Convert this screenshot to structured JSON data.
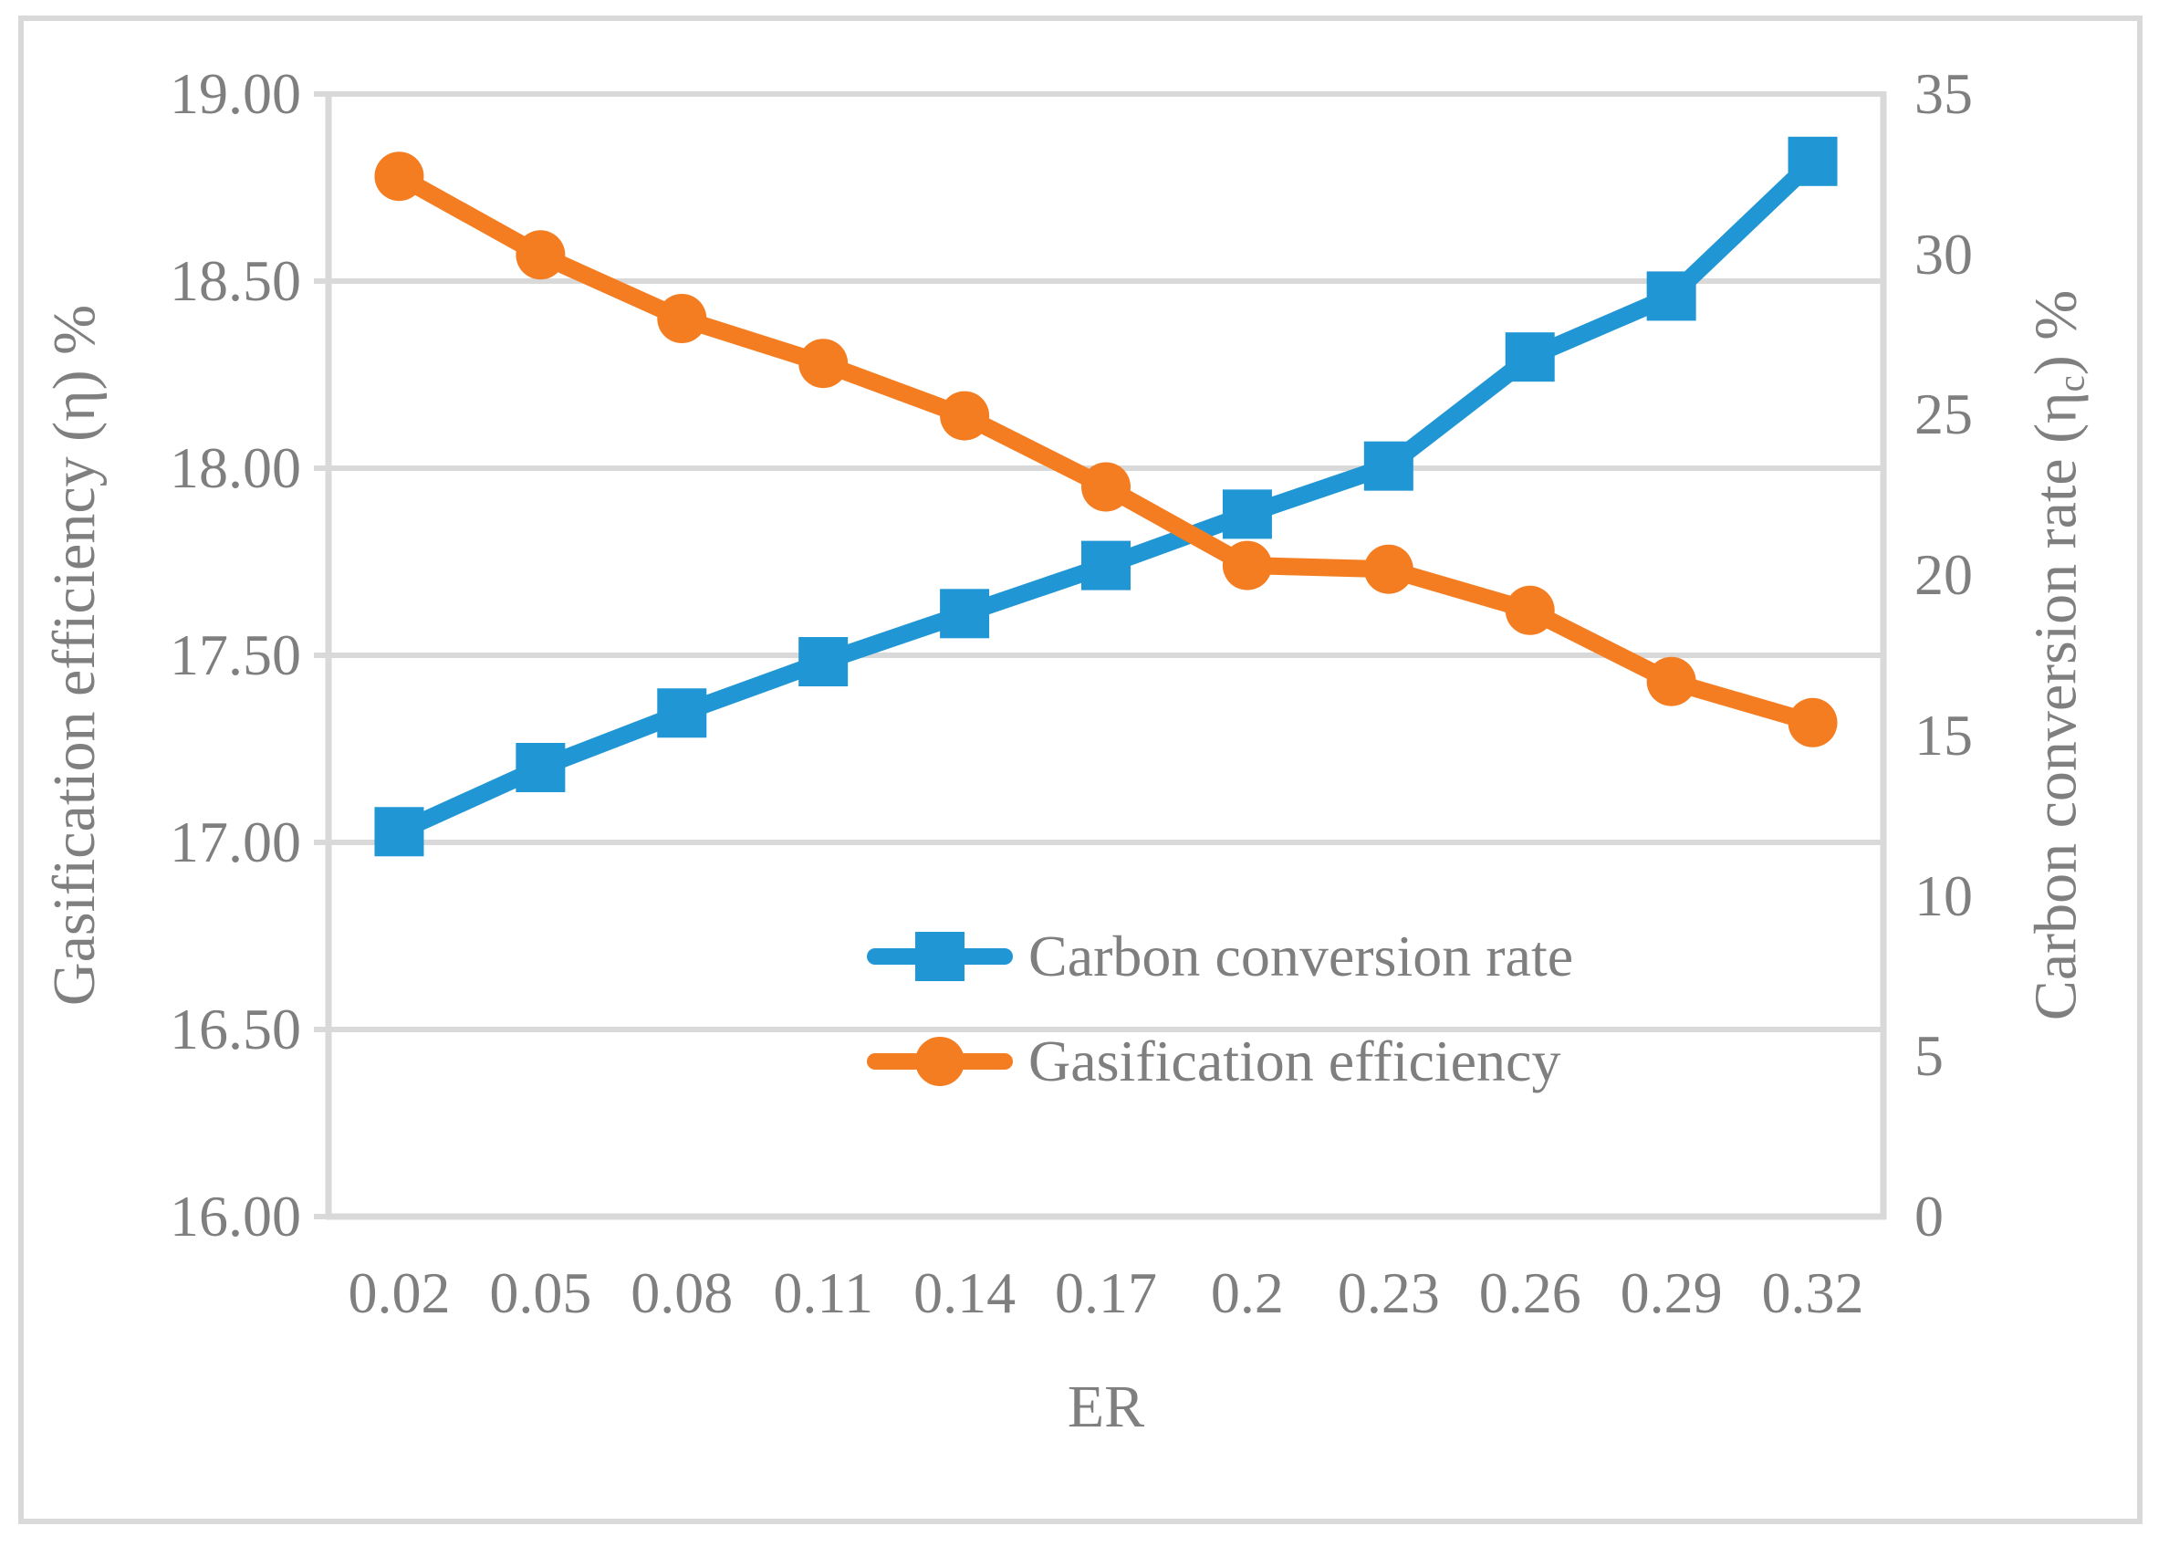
{
  "styles": {
    "text_color": "#7F7F7F",
    "grid_color": "#D9D9D9",
    "border_color": "#D9D9D9",
    "background": "#FFFFFF"
  },
  "chart_data": {
    "type": "line",
    "title": "",
    "xlabel": "ER",
    "x_categories": [
      "0.02",
      "0.05",
      "0.08",
      "0.11",
      "0.14",
      "0.17",
      "0.2",
      "0.23",
      "0.26",
      "0.29",
      "0.32"
    ],
    "grid": "horizontal gridlines at every 0.50 of left axis",
    "legend_position": "inside bottom-center, stacked vertically",
    "left_axis": {
      "title": "Gasification efficiency (η) %",
      "min": 16.0,
      "max": 19.0,
      "step": 0.5,
      "tick_labels": [
        "19.00",
        "18.50",
        "18.00",
        "17.50",
        "17.00",
        "16.50",
        "16.00"
      ]
    },
    "right_axis": {
      "title_pre": "Carbon conversion rate (η",
      "title_sub": "c",
      "title_post": ") %",
      "min": 0,
      "max": 35,
      "step": 5,
      "tick_labels": [
        "35",
        "30",
        "25",
        "20",
        "15",
        "10",
        "5",
        "0"
      ]
    },
    "series": [
      {
        "name": "Carbon conversion rate",
        "axis": "right",
        "color": "#2196D5",
        "marker": "square",
        "values": [
          12.0,
          14.0,
          15.7,
          17.3,
          18.8,
          20.3,
          21.9,
          23.4,
          26.8,
          28.7,
          32.9
        ]
      },
      {
        "name": "Gasification efficiency",
        "axis": "left",
        "color": "#F57D21",
        "marker": "circle",
        "values": [
          18.78,
          18.57,
          18.4,
          18.28,
          18.14,
          17.95,
          17.74,
          17.73,
          17.62,
          17.43,
          17.32
        ]
      }
    ]
  }
}
